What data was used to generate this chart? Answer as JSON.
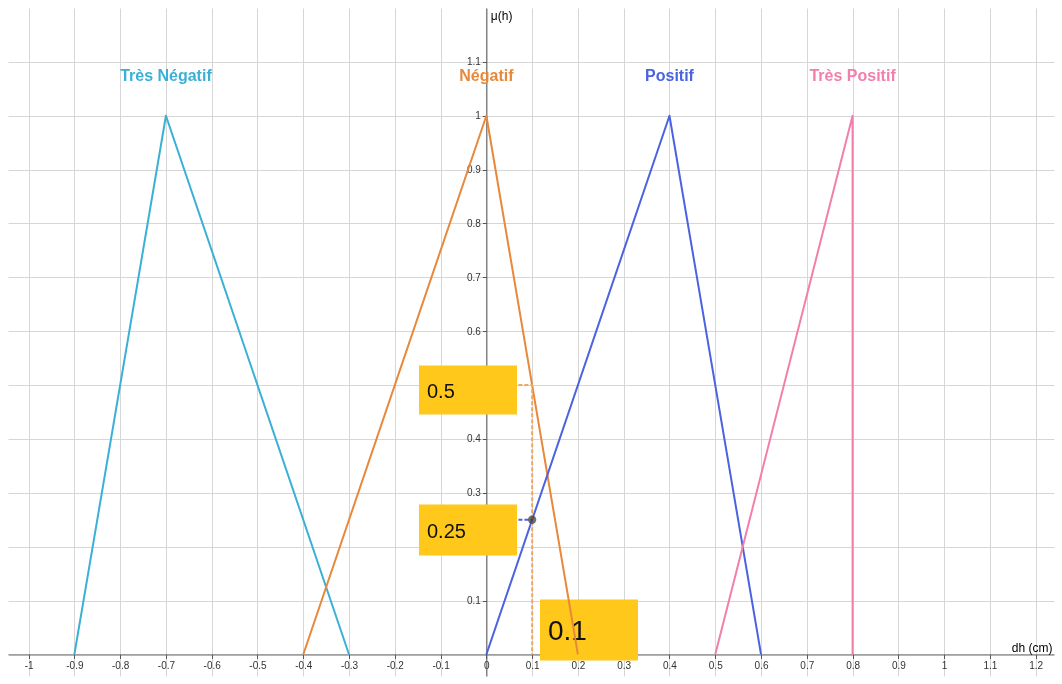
{
  "chart_data": {
    "type": "line",
    "xlabel": "dh (cm)",
    "ylabel": "μ(h)",
    "xlim": [
      -1.045,
      1.24
    ],
    "ylim": [
      -0.04,
      1.2
    ],
    "xticks": [
      -1,
      -0.9,
      -0.8,
      -0.7,
      -0.6,
      -0.5,
      -0.4,
      -0.3,
      -0.2,
      -0.1,
      0,
      0.1,
      0.2,
      0.3,
      0.4,
      0.5,
      0.6,
      0.7,
      0.8,
      0.9,
      1,
      1.1,
      1.2
    ],
    "yticks": [
      0.1,
      {
        "value": 0.2,
        "label": null
      },
      0.3,
      0.4,
      {
        "value": 0.5,
        "label": null
      },
      0.6,
      0.7,
      0.8,
      0.9,
      1,
      1.1
    ],
    "grid": true,
    "series": [
      {
        "name": "Très Négatif",
        "color": "#3bb0d6",
        "x": [
          -0.9,
          -0.7,
          -0.3
        ],
        "values": [
          0,
          1,
          0
        ]
      },
      {
        "name": "Négatif",
        "color": "#e8883a",
        "x": [
          -0.4,
          0,
          0.2
        ],
        "values": [
          0,
          1,
          0
        ]
      },
      {
        "name": "Positif",
        "color": "#4a63e0",
        "x": [
          0,
          0.4,
          0.6
        ],
        "values": [
          0,
          1,
          0
        ]
      },
      {
        "name": "Très Positif",
        "color": "#f27fab",
        "x": [
          0.5,
          0.8,
          0.8
        ],
        "values": [
          0,
          1,
          0
        ]
      },
      {
        "type": "line",
        "line_style": "dashed",
        "color": "#f0a860",
        "x": [
          0.07,
          0.1,
          0.1
        ],
        "values": [
          0.5,
          0.5,
          0
        ]
      },
      {
        "type": "line",
        "line_style": "dashed",
        "color": "#4a63e0",
        "x": [
          0.07,
          0.1
        ],
        "values": [
          0.25,
          0.25
        ]
      },
      {
        "type": "scatter",
        "marker": "circle",
        "color": "#333333",
        "x": [
          0.1
        ],
        "values": [
          0.25
        ]
      }
    ],
    "annotations": [
      "0.5",
      "0.25",
      "0.1"
    ]
  }
}
